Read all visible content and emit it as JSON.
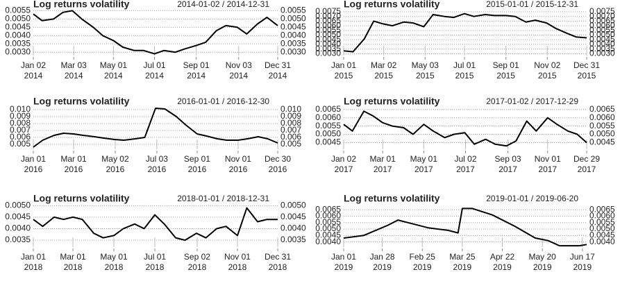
{
  "chart_data": [
    {
      "type": "line",
      "title": "Log returns volatility",
      "subtitle": "2014-01-02 / 2014-12-31",
      "color": "#000000",
      "grid": true,
      "xlim": [
        "2014-01-02",
        "2014-12-31"
      ],
      "xticks": [
        {
          "value": "2014-01-02",
          "label": "Jan 02\n2014"
        },
        {
          "value": "2014-03-03",
          "label": "Mar 03\n2014"
        },
        {
          "value": "2014-05-01",
          "label": "May 01\n2014"
        },
        {
          "value": "2014-07-01",
          "label": "Jul 01\n2014"
        },
        {
          "value": "2014-09-01",
          "label": "Sep 01\n2014"
        },
        {
          "value": "2014-11-03",
          "label": "Nov 03\n2014"
        },
        {
          "value": "2014-12-31",
          "label": "Dec 31\n2014"
        }
      ],
      "ylim": [
        0.0028,
        0.0056
      ],
      "yticks": [
        {
          "value": 0.003,
          "label": "0.0030"
        },
        {
          "value": 0.0035,
          "label": "0.0035"
        },
        {
          "value": 0.004,
          "label": "0.0040"
        },
        {
          "value": 0.0045,
          "label": "0.0045"
        },
        {
          "value": 0.005,
          "label": "0.0050"
        },
        {
          "value": 0.0055,
          "label": "0.0055"
        }
      ],
      "x": [
        "2014-01-02",
        "2014-01-15",
        "2014-02-01",
        "2014-02-15",
        "2014-03-01",
        "2014-03-15",
        "2014-04-01",
        "2014-04-15",
        "2014-05-01",
        "2014-05-15",
        "2014-06-01",
        "2014-06-15",
        "2014-07-01",
        "2014-07-15",
        "2014-08-01",
        "2014-08-15",
        "2014-09-01",
        "2014-09-15",
        "2014-10-01",
        "2014-10-15",
        "2014-11-01",
        "2014-11-15",
        "2014-12-01",
        "2014-12-15",
        "2014-12-31"
      ],
      "values": [
        0.0053,
        0.0049,
        0.005,
        0.0054,
        0.0055,
        0.005,
        0.0045,
        0.004,
        0.0037,
        0.0033,
        0.0031,
        0.0031,
        0.0029,
        0.0031,
        0.003,
        0.0032,
        0.0034,
        0.0036,
        0.0043,
        0.0046,
        0.0045,
        0.0041,
        0.0047,
        0.0051,
        0.0046
      ]
    },
    {
      "type": "line",
      "title": "Log returns volatility",
      "subtitle": "2015-01-01 / 2015-12-31",
      "color": "#000000",
      "grid": true,
      "xlim": [
        "2015-01-01",
        "2015-12-31"
      ],
      "xticks": [
        {
          "value": "2015-01-01",
          "label": "Jan 01\n2015"
        },
        {
          "value": "2015-03-02",
          "label": "Mar 02\n2015"
        },
        {
          "value": "2015-05-03",
          "label": "May 03\n2015"
        },
        {
          "value": "2015-07-01",
          "label": "Jul 01\n2015"
        },
        {
          "value": "2015-09-01",
          "label": "Sep 01\n2015"
        },
        {
          "value": "2015-11-02",
          "label": "Nov 02\n2015"
        },
        {
          "value": "2015-12-31",
          "label": "Dec 31\n2015"
        }
      ],
      "ylim": [
        0.0028,
        0.0078
      ],
      "yticks": [
        {
          "value": 0.003,
          "label": "0.0030"
        },
        {
          "value": 0.0035,
          "label": "0.0035"
        },
        {
          "value": 0.004,
          "label": "0.0040"
        },
        {
          "value": 0.0045,
          "label": "0.0045"
        },
        {
          "value": 0.005,
          "label": "0.0050"
        },
        {
          "value": 0.0055,
          "label": "0.0055"
        },
        {
          "value": 0.006,
          "label": "0.0060"
        },
        {
          "value": 0.0065,
          "label": "0.0065"
        },
        {
          "value": 0.007,
          "label": "0.0070"
        },
        {
          "value": 0.0075,
          "label": "0.0075"
        }
      ],
      "x": [
        "2015-01-01",
        "2015-01-15",
        "2015-02-01",
        "2015-02-15",
        "2015-03-01",
        "2015-03-15",
        "2015-04-01",
        "2015-04-15",
        "2015-05-01",
        "2015-05-15",
        "2015-06-01",
        "2015-06-15",
        "2015-07-01",
        "2015-07-15",
        "2015-08-01",
        "2015-08-15",
        "2015-09-01",
        "2015-09-15",
        "2015-10-01",
        "2015-10-15",
        "2015-11-01",
        "2015-11-15",
        "2015-12-01",
        "2015-12-15",
        "2015-12-31"
      ],
      "values": [
        0.0033,
        0.0032,
        0.0046,
        0.0065,
        0.0062,
        0.006,
        0.0064,
        0.0063,
        0.0059,
        0.0072,
        0.007,
        0.0069,
        0.0073,
        0.007,
        0.0072,
        0.0071,
        0.0071,
        0.007,
        0.0064,
        0.0066,
        0.0063,
        0.0057,
        0.0052,
        0.0048,
        0.0047
      ]
    },
    {
      "type": "line",
      "title": "Log returns volatility",
      "subtitle": "2016-01-01 / 2016-12-30",
      "color": "#000000",
      "grid": true,
      "xlim": [
        "2016-01-01",
        "2016-12-30"
      ],
      "xticks": [
        {
          "value": "2016-01-01",
          "label": "Jan 01\n2016"
        },
        {
          "value": "2016-03-01",
          "label": "Mar 01\n2016"
        },
        {
          "value": "2016-05-02",
          "label": "May 02\n2016"
        },
        {
          "value": "2016-07-03",
          "label": "Jul 03\n2016"
        },
        {
          "value": "2016-09-01",
          "label": "Sep 01\n2016"
        },
        {
          "value": "2016-11-01",
          "label": "Nov 01\n2016"
        },
        {
          "value": "2016-12-30",
          "label": "Dec 30\n2016"
        }
      ],
      "ylim": [
        0.0043,
        0.0105
      ],
      "yticks": [
        {
          "value": 0.005,
          "label": "0.005"
        },
        {
          "value": 0.006,
          "label": "0.006"
        },
        {
          "value": 0.007,
          "label": "0.007"
        },
        {
          "value": 0.008,
          "label": "0.008"
        },
        {
          "value": 0.009,
          "label": "0.009"
        },
        {
          "value": 0.01,
          "label": "0.010"
        }
      ],
      "x": [
        "2016-01-01",
        "2016-01-15",
        "2016-02-01",
        "2016-02-15",
        "2016-03-01",
        "2016-03-15",
        "2016-04-01",
        "2016-04-15",
        "2016-05-01",
        "2016-05-15",
        "2016-06-01",
        "2016-06-15",
        "2016-07-01",
        "2016-07-15",
        "2016-08-01",
        "2016-08-15",
        "2016-09-01",
        "2016-09-15",
        "2016-10-01",
        "2016-10-15",
        "2016-11-01",
        "2016-11-15",
        "2016-12-01",
        "2016-12-15",
        "2016-12-30"
      ],
      "values": [
        0.0046,
        0.0056,
        0.0063,
        0.0066,
        0.0065,
        0.0063,
        0.0061,
        0.0059,
        0.0057,
        0.0056,
        0.0058,
        0.006,
        0.0102,
        0.0101,
        0.009,
        0.0078,
        0.0065,
        0.0062,
        0.0058,
        0.0056,
        0.0056,
        0.0058,
        0.0061,
        0.0058,
        0.0052
      ]
    },
    {
      "type": "line",
      "title": "Log returns volatility",
      "subtitle": "2017-01-02 / 2017-12-29",
      "color": "#000000",
      "grid": true,
      "xlim": [
        "2017-01-02",
        "2017-12-29"
      ],
      "xticks": [
        {
          "value": "2017-01-02",
          "label": "Jan 02\n2017"
        },
        {
          "value": "2017-03-01",
          "label": "Mar 01\n2017"
        },
        {
          "value": "2017-05-01",
          "label": "May 01\n2017"
        },
        {
          "value": "2017-07-02",
          "label": "Jul 02\n2017"
        },
        {
          "value": "2017-09-03",
          "label": "Sep 03\n2017"
        },
        {
          "value": "2017-11-01",
          "label": "Nov 01\n2017"
        },
        {
          "value": "2017-12-29",
          "label": "Dec 29\n2017"
        }
      ],
      "ylim": [
        0.0041,
        0.0067
      ],
      "yticks": [
        {
          "value": 0.0045,
          "label": "0.0045"
        },
        {
          "value": 0.005,
          "label": "0.0050"
        },
        {
          "value": 0.0055,
          "label": "0.0055"
        },
        {
          "value": 0.006,
          "label": "0.0060"
        },
        {
          "value": 0.0065,
          "label": "0.0065"
        }
      ],
      "x": [
        "2017-01-02",
        "2017-01-15",
        "2017-02-01",
        "2017-02-15",
        "2017-03-01",
        "2017-03-15",
        "2017-04-01",
        "2017-04-15",
        "2017-05-01",
        "2017-05-15",
        "2017-06-01",
        "2017-06-15",
        "2017-07-01",
        "2017-07-15",
        "2017-08-01",
        "2017-08-15",
        "2017-09-01",
        "2017-09-15",
        "2017-10-01",
        "2017-10-15",
        "2017-11-01",
        "2017-11-15",
        "2017-12-01",
        "2017-12-15",
        "2017-12-29"
      ],
      "values": [
        0.0056,
        0.0052,
        0.0064,
        0.0061,
        0.0057,
        0.0055,
        0.0054,
        0.005,
        0.0056,
        0.0052,
        0.0048,
        0.005,
        0.0051,
        0.0044,
        0.0047,
        0.0044,
        0.0043,
        0.0046,
        0.0058,
        0.0052,
        0.006,
        0.0056,
        0.0052,
        0.005,
        0.0045
      ]
    },
    {
      "type": "line",
      "title": "Log returns volatility",
      "subtitle": "2018-01-01 / 2018-12-31",
      "color": "#000000",
      "grid": true,
      "xlim": [
        "2018-01-01",
        "2018-12-31"
      ],
      "xticks": [
        {
          "value": "2018-01-01",
          "label": "Jan 01\n2018"
        },
        {
          "value": "2018-03-01",
          "label": "Mar 01\n2018"
        },
        {
          "value": "2018-05-01",
          "label": "May 01\n2018"
        },
        {
          "value": "2018-07-01",
          "label": "Jul 01\n2018"
        },
        {
          "value": "2018-09-02",
          "label": "Sep 02\n2018"
        },
        {
          "value": "2018-11-01",
          "label": "Nov 01\n2018"
        },
        {
          "value": "2018-12-31",
          "label": "Dec 31\n2018"
        }
      ],
      "ylim": [
        0.0032,
        0.0051
      ],
      "yticks": [
        {
          "value": 0.0035,
          "label": "0.0035"
        },
        {
          "value": 0.004,
          "label": "0.0040"
        },
        {
          "value": 0.0045,
          "label": "0.0045"
        },
        {
          "value": 0.005,
          "label": "0.0050"
        }
      ],
      "x": [
        "2018-01-01",
        "2018-01-15",
        "2018-02-01",
        "2018-02-15",
        "2018-03-01",
        "2018-03-15",
        "2018-04-01",
        "2018-04-15",
        "2018-05-01",
        "2018-05-15",
        "2018-06-01",
        "2018-06-15",
        "2018-07-01",
        "2018-07-15",
        "2018-08-01",
        "2018-08-15",
        "2018-09-01",
        "2018-09-15",
        "2018-10-01",
        "2018-10-15",
        "2018-11-01",
        "2018-11-15",
        "2018-12-01",
        "2018-12-15",
        "2018-12-31"
      ],
      "values": [
        0.0044,
        0.0041,
        0.0045,
        0.0044,
        0.0045,
        0.0044,
        0.0038,
        0.0036,
        0.0037,
        0.004,
        0.0042,
        0.004,
        0.0046,
        0.0042,
        0.0036,
        0.0035,
        0.0038,
        0.0036,
        0.004,
        0.0041,
        0.0037,
        0.0049,
        0.0043,
        0.0044,
        0.0044
      ]
    },
    {
      "type": "line",
      "title": "Log returns volatility",
      "subtitle": "2019-01-01 / 2019-06-20",
      "color": "#000000",
      "grid": true,
      "xlim": [
        "2019-01-01",
        "2019-06-20"
      ],
      "xticks": [
        {
          "value": "2019-01-01",
          "label": "Jan 01\n2019"
        },
        {
          "value": "2019-01-28",
          "label": "Jan 28\n2019"
        },
        {
          "value": "2019-02-25",
          "label": "Feb 25\n2019"
        },
        {
          "value": "2019-03-25",
          "label": "Mar 25\n2019"
        },
        {
          "value": "2019-04-22",
          "label": "Apr 22\n2019"
        },
        {
          "value": "2019-05-20",
          "label": "May 20\n2019"
        },
        {
          "value": "2019-06-17",
          "label": "Jun 17\n2019"
        }
      ],
      "ylim": [
        0.0036,
        0.007
      ],
      "yticks": [
        {
          "value": 0.004,
          "label": "0.0040"
        },
        {
          "value": 0.0045,
          "label": "0.0045"
        },
        {
          "value": 0.005,
          "label": "0.0050"
        },
        {
          "value": 0.0055,
          "label": "0.0055"
        },
        {
          "value": 0.006,
          "label": "0.0060"
        },
        {
          "value": 0.0065,
          "label": "0.0065"
        }
      ],
      "x": [
        "2019-01-01",
        "2019-01-15",
        "2019-02-01",
        "2019-02-08",
        "2019-02-15",
        "2019-03-01",
        "2019-03-15",
        "2019-03-22",
        "2019-03-25",
        "2019-04-01",
        "2019-04-15",
        "2019-05-01",
        "2019-05-15",
        "2019-05-24",
        "2019-06-01",
        "2019-06-15",
        "2019-06-20"
      ],
      "values": [
        0.0043,
        0.0045,
        0.0053,
        0.0057,
        0.0055,
        0.0051,
        0.0049,
        0.0047,
        0.0066,
        0.0066,
        0.0061,
        0.0052,
        0.0043,
        0.0041,
        0.0037,
        0.0037,
        0.0038
      ]
    }
  ]
}
